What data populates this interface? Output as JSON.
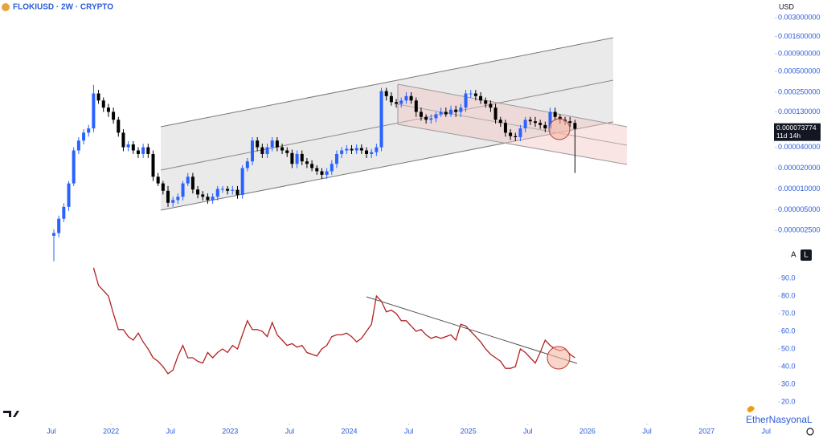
{
  "chart_data": [
    {
      "type": "candlestick",
      "title": "FLOKIUSD · 2W · CRYPTO",
      "currency": "USD",
      "x": [
        "2021-07",
        "2021-07",
        "2021-08",
        "2021-08",
        "2021-09",
        "2021-09",
        "2021-10",
        "2021-10",
        "2021-11",
        "2021-11",
        "2021-12",
        "2021-12",
        "2022-01",
        "2022-01",
        "2022-02",
        "2022-02",
        "2022-03",
        "2022-03",
        "2022-04",
        "2022-04",
        "2022-05",
        "2022-05",
        "2022-06",
        "2022-06",
        "2022-07",
        "2022-07",
        "2022-08",
        "2022-08",
        "2022-09",
        "2022-09",
        "2022-10",
        "2022-10",
        "2022-11",
        "2022-11",
        "2022-12",
        "2022-12",
        "2023-01",
        "2023-01",
        "2023-02",
        "2023-02",
        "2023-03",
        "2023-03",
        "2023-04",
        "2023-04",
        "2023-05",
        "2023-05",
        "2023-06",
        "2023-06",
        "2023-07",
        "2023-07",
        "2023-08",
        "2023-08",
        "2023-09",
        "2023-09",
        "2023-10",
        "2023-10",
        "2023-11",
        "2023-11",
        "2023-12",
        "2023-12",
        "2024-01",
        "2024-01",
        "2024-02",
        "2024-02",
        "2024-03",
        "2024-03",
        "2024-04",
        "2024-04",
        "2024-05",
        "2024-05",
        "2024-06",
        "2024-06",
        "2024-07",
        "2024-07",
        "2024-08",
        "2024-08",
        "2024-09",
        "2024-09",
        "2024-10",
        "2024-10",
        "2024-11",
        "2024-11",
        "2024-12",
        "2024-12",
        "2025-01",
        "2025-01",
        "2025-02",
        "2025-02",
        "2025-03",
        "2025-03",
        "2025-04",
        "2025-04",
        "2025-05",
        "2025-05",
        "2025-06",
        "2025-06",
        "2025-07",
        "2025-07",
        "2025-08",
        "2025-08",
        "2025-09",
        "2025-09",
        "2025-10",
        "2025-10",
        "2025-11",
        "2025-11"
      ],
      "open": [
        2.1e-06,
        2.3e-06,
        3.7e-06,
        5.5e-06,
        1.2e-05,
        3.6e-05,
        5e-05,
        6.5e-05,
        7.5e-05,
        0.00024,
        0.00019,
        0.00015,
        0.00013,
        0.0001,
        6.5e-05,
        4e-05,
        4.4e-05,
        3.6e-05,
        3.2e-05,
        4e-05,
        3.2e-05,
        1.5e-05,
        1.2e-05,
        9.4e-06,
        6.3e-06,
        6.9e-06,
        7.7e-06,
        1.2e-05,
        1.5e-05,
        9.8e-06,
        8.3e-06,
        7.7e-06,
        6.9e-06,
        7.7e-06,
        1e-05,
        1e-05,
        9.4e-06,
        9.7e-06,
        8.2e-06,
        2e-05,
        2.5e-05,
        5e-05,
        4e-05,
        3.2e-05,
        4e-05,
        5e-05,
        4e-05,
        3.6e-05,
        3.3e-05,
        2.3e-05,
        3.2e-05,
        2.5e-05,
        2.3e-05,
        2e-05,
        1.8e-05,
        1.6e-05,
        1.8e-05,
        2.3e-05,
        3.2e-05,
        3.6e-05,
        3.8e-05,
        3.6e-05,
        3.9e-05,
        3.6e-05,
        3.2e-05,
        3.4e-05,
        4e-05,
        0.00026,
        0.00022,
        0.00018,
        0.00017,
        0.00019,
        0.00022,
        0.00019,
        0.00013,
        0.00011,
        0.0001,
        0.000105,
        0.00012,
        0.00013,
        0.00012,
        0.00014,
        0.00013,
        0.00015,
        0.00024,
        0.00024,
        0.00022,
        0.00019,
        0.00017,
        0.00015,
        0.0001,
        9e-05,
        6.5e-05,
        5.8e-05,
        5.6e-05,
        7.5e-05,
        0.0001,
        9.5e-05,
        9e-05,
        8.4e-05,
        7.5e-05,
        0.00013,
        0.00011,
        0.0001,
        9.5e-05,
        9e-05
      ],
      "high": [
        2.6e-06,
        4.1e-06,
        6.2e-06,
        1.3e-05,
        4e-05,
        5.6e-05,
        7.3e-05,
        8.4e-05,
        0.00032,
        0.00027,
        0.00021,
        0.00017,
        0.00015,
        0.00011,
        7.3e-05,
        4.9e-05,
        4.9e-05,
        4e-05,
        4.5e-05,
        4.5e-05,
        3.6e-05,
        1.7e-05,
        1.3e-05,
        1.1e-05,
        7.7e-06,
        8.6e-06,
        1.3e-05,
        1.7e-05,
        1.7e-05,
        1.1e-05,
        9.3e-06,
        8.6e-06,
        8.6e-06,
        1.1e-05,
        1.1e-05,
        1.1e-05,
        1.1e-05,
        1.1e-05,
        2.2e-05,
        2.8e-05,
        5.6e-05,
        5.6e-05,
        4.5e-05,
        4.5e-05,
        5.6e-05,
        5.6e-05,
        4.5e-05,
        4e-05,
        3.7e-05,
        3.6e-05,
        3.6e-05,
        2.8e-05,
        2.6e-05,
        2.2e-05,
        2e-05,
        2e-05,
        2.6e-05,
        3.6e-05,
        4e-05,
        4.3e-05,
        4.3e-05,
        4.4e-05,
        4.4e-05,
        4e-05,
        3.8e-05,
        4.5e-05,
        0.00029,
        0.00029,
        0.00025,
        0.0002,
        0.00021,
        0.00025,
        0.00025,
        0.00021,
        0.00015,
        0.00012,
        0.00012,
        0.00013,
        0.00015,
        0.00015,
        0.00016,
        0.00016,
        0.00017,
        0.00027,
        0.00027,
        0.00027,
        0.00025,
        0.00021,
        0.00019,
        0.00017,
        0.00011,
        0.0001,
        7.3e-05,
        6.5e-05,
        8.4e-05,
        0.00011,
        0.00011,
        0.00011,
        0.0001,
        9.4e-05,
        0.00015,
        0.00015,
        0.00012,
        0.00011,
        0.00011,
        0.0001
      ],
      "low": [
        9e-07,
        2e-06,
        3.3e-06,
        4.8e-06,
        1.1e-05,
        3.2e-05,
        4.4e-05,
        5.7e-05,
        6.6e-05,
        0.00017,
        0.00013,
        0.00011,
        8.8e-05,
        5.7e-05,
        3.5e-05,
        3.5e-05,
        3.2e-05,
        2.8e-05,
        2.8e-05,
        2.8e-05,
        1.3e-05,
        1.1e-05,
        8.3e-06,
        5.5e-06,
        5.5e-06,
        6.1e-06,
        6.8e-06,
        1.1e-05,
        8.6e-06,
        7.3e-06,
        6.8e-06,
        6.1e-06,
        6.1e-06,
        6.8e-06,
        8.8e-06,
        8.3e-06,
        8.3e-06,
        7.2e-06,
        7.2e-06,
        1.8e-05,
        2.2e-05,
        3.5e-05,
        2.8e-05,
        2.8e-05,
        3.5e-05,
        3.5e-05,
        3.2e-05,
        2.9e-05,
        2e-05,
        2e-05,
        2.2e-05,
        2e-05,
        1.8e-05,
        1.6e-05,
        1.4e-05,
        1.4e-05,
        1.6e-05,
        2e-05,
        2.8e-05,
        3.2e-05,
        3.2e-05,
        3.2e-05,
        3.2e-05,
        2.8e-05,
        2.8e-05,
        3e-05,
        3.5e-05,
        0.00019,
        0.00016,
        0.00015,
        0.00015,
        0.00017,
        0.00017,
        0.00011,
        9.7e-05,
        8.8e-05,
        8.8e-05,
        9.2e-05,
        0.00011,
        0.00011,
        0.00011,
        0.00011,
        0.00011,
        0.00013,
        0.00021,
        0.00019,
        0.00017,
        0.00015,
        0.00013,
        8.8e-05,
        7.9e-05,
        5.7e-05,
        5.1e-05,
        4.9e-05,
        4.9e-05,
        6.6e-05,
        8.4e-05,
        7.9e-05,
        7.4e-05,
        6.6e-05,
        6.6e-05,
        9.7e-05,
        8.8e-05,
        8.4e-05,
        7.9e-05,
        1.7e-05
      ],
      "close": [
        2.3e-06,
        3.7e-06,
        5.5e-06,
        1.2e-05,
        3.6e-05,
        5e-05,
        6.5e-05,
        7.5e-05,
        0.00024,
        0.00019,
        0.00015,
        0.00013,
        0.0001,
        6.5e-05,
        4e-05,
        4.4e-05,
        3.6e-05,
        3.2e-05,
        4e-05,
        3.2e-05,
        1.5e-05,
        1.2e-05,
        9.4e-06,
        6.3e-06,
        6.9e-06,
        7.7e-06,
        1.2e-05,
        1.5e-05,
        9.8e-06,
        8.3e-06,
        7.7e-06,
        6.9e-06,
        7.7e-06,
        1e-05,
        1e-05,
        9.4e-06,
        9.7e-06,
        8.2e-06,
        2e-05,
        2.5e-05,
        5e-05,
        4e-05,
        3.2e-05,
        4e-05,
        5e-05,
        4e-05,
        3.6e-05,
        3.3e-05,
        2.3e-05,
        3.2e-05,
        2.5e-05,
        2.3e-05,
        2e-05,
        1.8e-05,
        1.6e-05,
        1.8e-05,
        2.3e-05,
        3.2e-05,
        3.6e-05,
        3.8e-05,
        3.6e-05,
        3.9e-05,
        3.6e-05,
        3.2e-05,
        3.4e-05,
        4e-05,
        0.00026,
        0.00022,
        0.00018,
        0.00017,
        0.00019,
        0.00022,
        0.00019,
        0.00013,
        0.00011,
        0.0001,
        0.000105,
        0.00012,
        0.00013,
        0.00012,
        0.00014,
        0.00013,
        0.00015,
        0.00024,
        0.00024,
        0.00022,
        0.00019,
        0.00017,
        0.00015,
        0.0001,
        9e-05,
        6.5e-05,
        5.8e-05,
        5.6e-05,
        7.5e-05,
        0.0001,
        9.5e-05,
        9e-05,
        8.4e-05,
        7.5e-05,
        0.00013,
        0.00011,
        0.0001,
        9.5e-05,
        9e-05,
        7.3774e-05
      ],
      "up_color": "#2962ff",
      "down_color": "#000000",
      "log_scale": true,
      "grid": false,
      "ylim": [
        8e-07,
        0.0054
      ],
      "yticks": [
        {
          "value": 0.003,
          "label": "0.003000000"
        },
        {
          "value": 0.0016,
          "label": "0.001600000"
        },
        {
          "value": 0.0009,
          "label": "0.000900000"
        },
        {
          "value": 0.0005,
          "label": "0.000500000"
        },
        {
          "value": 0.00025,
          "label": "0.000250000"
        },
        {
          "value": 0.00013,
          "label": "0.000130000"
        },
        {
          "value": 4e-05,
          "label": "0.000040000"
        },
        {
          "value": 2e-05,
          "label": "0.000020000"
        },
        {
          "value": 1e-05,
          "label": "0.000010000"
        },
        {
          "value": 5e-06,
          "label": "0.000005000"
        },
        {
          "value": 2.5e-06,
          "label": "0.000002500"
        }
      ],
      "xticks": [
        {
          "value": "2021-07",
          "label": "Jul"
        },
        {
          "value": "2022-01",
          "label": "2022"
        },
        {
          "value": "2022-07",
          "label": "Jul"
        },
        {
          "value": "2023-01",
          "label": "2023"
        },
        {
          "value": "2023-07",
          "label": "Jul"
        },
        {
          "value": "2024-01",
          "label": "2024"
        },
        {
          "value": "2024-07",
          "label": "Jul"
        },
        {
          "value": "2025-01",
          "label": "2025"
        },
        {
          "value": "2025-07",
          "label": "Jul"
        },
        {
          "value": "2026-01",
          "label": "2026"
        },
        {
          "value": "2026-07",
          "label": "Jul"
        },
        {
          "value": "2027-01",
          "label": "2027"
        },
        {
          "value": "2027-07",
          "label": "Jul"
        }
      ],
      "last_price_label": "0.000073774",
      "countdown": "11d 14h",
      "scale_buttons": [
        "A",
        "L"
      ],
      "watermark": "EtherNasyonaL"
    },
    {
      "type": "line",
      "color": "#b22222",
      "values": [
        null,
        null,
        null,
        null,
        null,
        null,
        null,
        null,
        96,
        86,
        83,
        80,
        70,
        61,
        61,
        57,
        55,
        59,
        54,
        50,
        45,
        43,
        40,
        36,
        38,
        46,
        52,
        45,
        45,
        43,
        42,
        48,
        45,
        48,
        50,
        48,
        52,
        50,
        58,
        66,
        61,
        61,
        60,
        57,
        65,
        58,
        55,
        52,
        53,
        51,
        52,
        48,
        47,
        46,
        50,
        52,
        57,
        58,
        58,
        59,
        57,
        54,
        56,
        60,
        64,
        80,
        77,
        71,
        72,
        70,
        66,
        66,
        63,
        60,
        61,
        58,
        56,
        57,
        56,
        57,
        58,
        55,
        64,
        63,
        60,
        57,
        54,
        50,
        47,
        45,
        43,
        39,
        39,
        40,
        50,
        48,
        45,
        42,
        48,
        55,
        52,
        50,
        49,
        50,
        47,
        45
      ],
      "ylim": [
        10,
        100
      ],
      "yticks": [
        {
          "value": 90,
          "label": "90.0"
        },
        {
          "value": 80,
          "label": "80.0"
        },
        {
          "value": 70,
          "label": "70.0"
        },
        {
          "value": 60,
          "label": "60.0"
        },
        {
          "value": 50,
          "label": "50.0"
        },
        {
          "value": 40,
          "label": "40.0"
        },
        {
          "value": 30,
          "label": "30.0"
        },
        {
          "value": 20,
          "label": "20.0"
        }
      ]
    }
  ]
}
